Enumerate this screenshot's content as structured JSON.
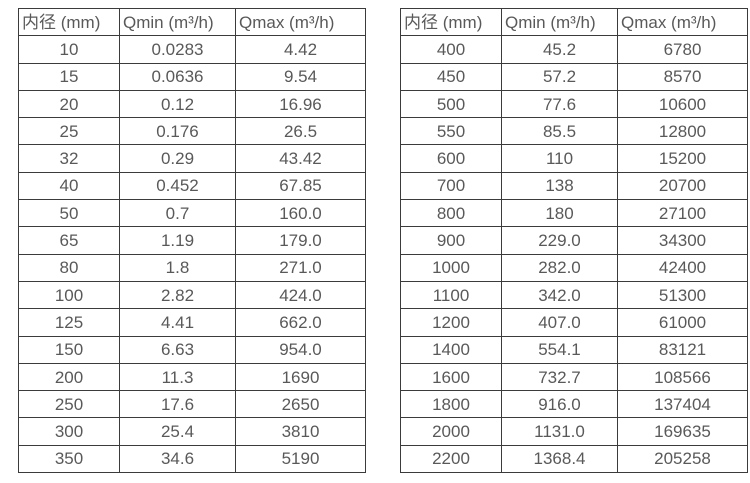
{
  "page": {
    "background_color": "#ffffff",
    "text_color": "#595959",
    "border_color": "#3b3b3b"
  },
  "tables": [
    {
      "name": "flow-table-small-diameters",
      "headers": [
        "内径 (mm)",
        "Qmin (m³/h)",
        "Qmax (m³/h)"
      ],
      "rows": [
        [
          "10",
          "0.0283",
          "4.42"
        ],
        [
          "15",
          "0.0636",
          "9.54"
        ],
        [
          "20",
          "0.12",
          "16.96"
        ],
        [
          "25",
          "0.176",
          "26.5"
        ],
        [
          "32",
          "0.29",
          "43.42"
        ],
        [
          "40",
          "0.452",
          "67.85"
        ],
        [
          "50",
          "0.7",
          "160.0"
        ],
        [
          "65",
          "1.19",
          "179.0"
        ],
        [
          "80",
          "1.8",
          "271.0"
        ],
        [
          "100",
          "2.82",
          "424.0"
        ],
        [
          "125",
          "4.41",
          "662.0"
        ],
        [
          "150",
          "6.63",
          "954.0"
        ],
        [
          "200",
          "11.3",
          "1690"
        ],
        [
          "250",
          "17.6",
          "2650"
        ],
        [
          "300",
          "25.4",
          "3810"
        ],
        [
          "350",
          "34.6",
          "5190"
        ]
      ]
    },
    {
      "name": "flow-table-large-diameters",
      "headers": [
        "内径 (mm)",
        "Qmin (m³/h)",
        "Qmax (m³/h)"
      ],
      "rows": [
        [
          "400",
          "45.2",
          "6780"
        ],
        [
          "450",
          "57.2",
          "8570"
        ],
        [
          "500",
          "77.6",
          "10600"
        ],
        [
          "550",
          "85.5",
          "12800"
        ],
        [
          "600",
          "110",
          "15200"
        ],
        [
          "700",
          "138",
          "20700"
        ],
        [
          "800",
          "180",
          "27100"
        ],
        [
          "900",
          "229.0",
          "34300"
        ],
        [
          "1000",
          "282.0",
          "42400"
        ],
        [
          "1100",
          "342.0",
          "51300"
        ],
        [
          "1200",
          "407.0",
          "61000"
        ],
        [
          "1400",
          "554.1",
          "83121"
        ],
        [
          "1600",
          "732.7",
          "108566"
        ],
        [
          "1800",
          "916.0",
          "137404"
        ],
        [
          "2000",
          "1131.0",
          "169635"
        ],
        [
          "2200",
          "1368.4",
          "205258"
        ]
      ]
    }
  ]
}
